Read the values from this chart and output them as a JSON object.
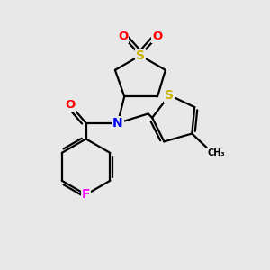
{
  "background_color": "#e8e8e8",
  "atom_colors": {
    "S": "#c8b400",
    "O": "#ff0000",
    "N": "#0000ff",
    "F": "#ff00ff",
    "C": "#000000"
  },
  "bond_color": "#000000",
  "bond_width": 1.6,
  "figsize": [
    3.0,
    3.0
  ],
  "dpi": 100
}
